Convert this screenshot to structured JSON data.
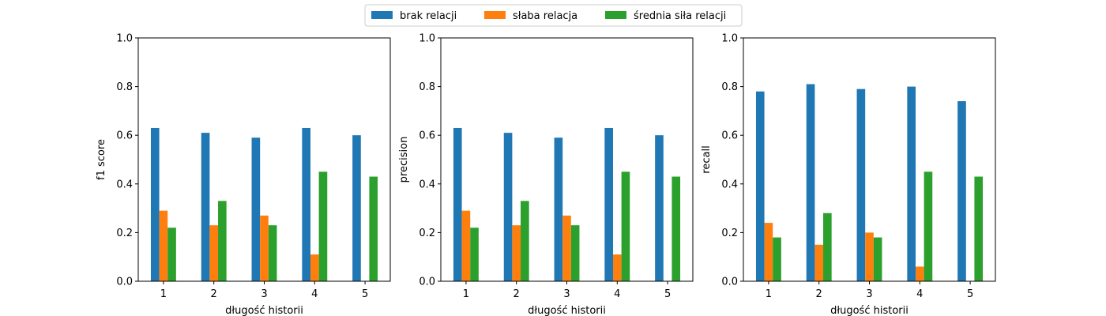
{
  "legend": {
    "position": "top-center",
    "entries": [
      {
        "label": "brak relacji",
        "color": "#1f77b4"
      },
      {
        "label": "słaba relacja",
        "color": "#ff7f0e"
      },
      {
        "label": "średnia siła relacji",
        "color": "#2ca02c"
      }
    ]
  },
  "chart_data": [
    {
      "type": "bar",
      "xlabel": "długość historii",
      "ylabel": "f1 score",
      "ylim": [
        0,
        1.0
      ],
      "yticks": [
        "0.0",
        "0.2",
        "0.4",
        "0.6",
        "0.8",
        "1.0"
      ],
      "categories": [
        "1",
        "2",
        "3",
        "4",
        "5"
      ],
      "series": [
        {
          "name": "brak relacji",
          "color": "#1f77b4",
          "values": [
            0.63,
            0.61,
            0.59,
            0.63,
            0.6
          ]
        },
        {
          "name": "słaba relacja",
          "color": "#ff7f0e",
          "values": [
            0.29,
            0.23,
            0.27,
            0.11,
            0.0
          ]
        },
        {
          "name": "średnia siła relacji",
          "color": "#2ca02c",
          "values": [
            0.22,
            0.33,
            0.23,
            0.45,
            0.43
          ]
        }
      ]
    },
    {
      "type": "bar",
      "xlabel": "długość historii",
      "ylabel": "precision",
      "ylim": [
        0,
        1.0
      ],
      "yticks": [
        "0.0",
        "0.2",
        "0.4",
        "0.6",
        "0.8",
        "1.0"
      ],
      "categories": [
        "1",
        "2",
        "3",
        "4",
        "5"
      ],
      "series": [
        {
          "name": "brak relacji",
          "color": "#1f77b4",
          "values": [
            0.63,
            0.61,
            0.59,
            0.63,
            0.6
          ]
        },
        {
          "name": "słaba relacja",
          "color": "#ff7f0e",
          "values": [
            0.29,
            0.23,
            0.27,
            0.11,
            0.0
          ]
        },
        {
          "name": "średnia siła relacji",
          "color": "#2ca02c",
          "values": [
            0.22,
            0.33,
            0.23,
            0.45,
            0.43
          ]
        }
      ]
    },
    {
      "type": "bar",
      "xlabel": "długość historii",
      "ylabel": "recall",
      "ylim": [
        0,
        1.0
      ],
      "yticks": [
        "0.0",
        "0.2",
        "0.4",
        "0.6",
        "0.8",
        "1.0"
      ],
      "categories": [
        "1",
        "2",
        "3",
        "4",
        "5"
      ],
      "series": [
        {
          "name": "brak relacji",
          "color": "#1f77b4",
          "values": [
            0.78,
            0.81,
            0.79,
            0.8,
            0.74
          ]
        },
        {
          "name": "słaba relacja",
          "color": "#ff7f0e",
          "values": [
            0.24,
            0.15,
            0.2,
            0.06,
            0.0
          ]
        },
        {
          "name": "średnia siła relacji",
          "color": "#2ca02c",
          "values": [
            0.18,
            0.28,
            0.18,
            0.45,
            0.43
          ]
        }
      ]
    }
  ]
}
